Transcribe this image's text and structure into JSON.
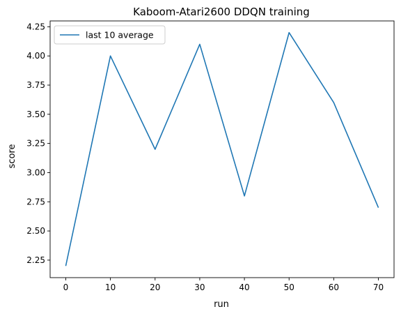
{
  "chart_data": {
    "type": "line",
    "title": "Kaboom-Atari2600 DDQN training",
    "xlabel": "run",
    "ylabel": "score",
    "x": [
      0,
      10,
      20,
      30,
      40,
      50,
      60,
      70
    ],
    "series": [
      {
        "name": "last 10 average",
        "values": [
          2.2,
          4.0,
          3.2,
          4.1,
          2.8,
          4.2,
          3.6,
          2.7
        ],
        "color": "#1f77b4"
      }
    ],
    "xlim": [
      -3.5,
      73.5
    ],
    "ylim": [
      2.1,
      4.3
    ],
    "xticks": [
      0,
      10,
      20,
      30,
      40,
      50,
      60,
      70
    ],
    "xtick_labels": [
      "0",
      "10",
      "20",
      "30",
      "40",
      "50",
      "60",
      "70"
    ],
    "yticks": [
      2.25,
      2.5,
      2.75,
      3.0,
      3.25,
      3.5,
      3.75,
      4.0,
      4.25
    ],
    "ytick_labels": [
      "2.25",
      "2.50",
      "2.75",
      "3.00",
      "3.25",
      "3.50",
      "3.75",
      "4.00",
      "4.25"
    ],
    "grid": false,
    "legend_position": "top-left"
  }
}
